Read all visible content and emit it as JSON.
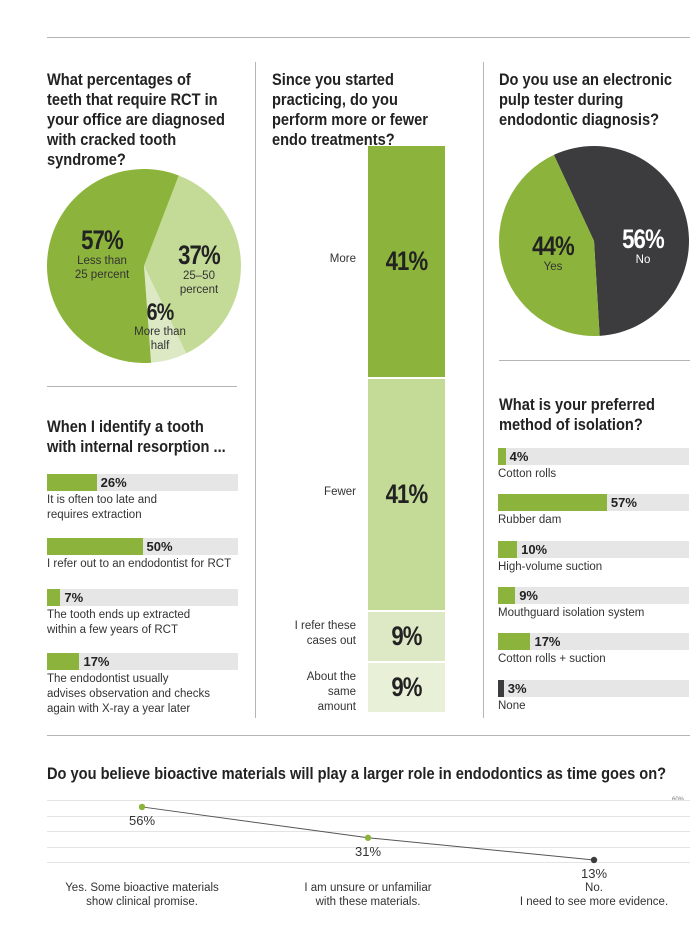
{
  "colors": {
    "green": "#8cb43c",
    "green_mid": "#a7c86a",
    "green_light": "#c4db97",
    "green_pale": "#dde9c4",
    "green_paler": "#e9f0d8",
    "dark": "#3c3c3e",
    "track": "#e6e6e6"
  },
  "q1": {
    "title": "What percentages of teeth that require RCT in your office are diagnosed with cracked tooth syndrome?",
    "slices": [
      {
        "pct": "57%",
        "label": "Less than 25 percent",
        "value": 57
      },
      {
        "pct": "37%",
        "label": "25–50 percent",
        "value": 37
      },
      {
        "pct": "6%",
        "label": "More than half",
        "value": 6
      }
    ]
  },
  "q2": {
    "title": "Since you started practicing, do you perform more or fewer endo treatments?",
    "segments": [
      {
        "label": "More",
        "pct": "41%",
        "value": 41
      },
      {
        "label": "Fewer",
        "pct": "41%",
        "value": 41
      },
      {
        "label": "I refer these cases out",
        "pct": "9%",
        "value": 9
      },
      {
        "label": "About the same amount",
        "pct": "9%",
        "value": 9
      }
    ]
  },
  "q3": {
    "title": "Do you use an electronic pulp tester during endodontic diagnosis?",
    "slices": [
      {
        "pct": "44%",
        "label": "Yes",
        "value": 44
      },
      {
        "pct": "56%",
        "label": "No",
        "value": 56
      }
    ]
  },
  "q4": {
    "title": "When I identify a tooth with internal resorption ...",
    "items": [
      {
        "pct": "26%",
        "value": 26,
        "desc": [
          "It is often too late and",
          "requires extraction"
        ]
      },
      {
        "pct": "50%",
        "value": 50,
        "desc": [
          "I refer out to an endodontist for RCT"
        ]
      },
      {
        "pct": "7%",
        "value": 7,
        "desc": [
          "The tooth ends up extracted",
          "within a few years of RCT"
        ]
      },
      {
        "pct": "17%",
        "value": 17,
        "desc": [
          "The endodontist usually",
          "advises observation and checks",
          "again with X-ray a year later"
        ]
      }
    ]
  },
  "q5": {
    "title": "What is your preferred method of isolation?",
    "items": [
      {
        "pct": "4%",
        "value": 4,
        "desc": "Cotton rolls"
      },
      {
        "pct": "57%",
        "value": 57,
        "desc": "Rubber dam"
      },
      {
        "pct": "10%",
        "value": 10,
        "desc": "High-volume suction"
      },
      {
        "pct": "9%",
        "value": 9,
        "desc": "Mouthguard isolation system"
      },
      {
        "pct": "17%",
        "value": 17,
        "desc": "Cotton rolls + suction"
      },
      {
        "pct": "3%",
        "value": 3,
        "desc": "None",
        "dark": true
      }
    ]
  },
  "q6": {
    "title": "Do you believe bioactive materials will play a larger role in endodontics as time goes on?",
    "axis_max_label": "60%"
  },
  "chart_data": [
    {
      "type": "pie",
      "title": "What percentages of teeth that require RCT in your office are diagnosed with cracked tooth syndrome?",
      "categories": [
        "Less than 25 percent",
        "25–50 percent",
        "More than half"
      ],
      "values": [
        57,
        37,
        6
      ]
    },
    {
      "type": "bar",
      "title": "Since you started practicing, do you perform more or fewer endo treatments?",
      "categories": [
        "More",
        "Fewer",
        "I refer these cases out",
        "About the same amount"
      ],
      "values": [
        41,
        41,
        9,
        9
      ]
    },
    {
      "type": "pie",
      "title": "Do you use an electronic pulp tester during endodontic diagnosis?",
      "categories": [
        "Yes",
        "No"
      ],
      "values": [
        44,
        56
      ]
    },
    {
      "type": "bar",
      "title": "When I identify a tooth with internal resorption ...",
      "categories": [
        "It is often too late and requires extraction",
        "I refer out to an endodontist for RCT",
        "The tooth ends up extracted within a few years of RCT",
        "The endodontist usually advises observation and checks again with X-ray a year later"
      ],
      "values": [
        26,
        50,
        7,
        17
      ]
    },
    {
      "type": "bar",
      "title": "What is your preferred method of isolation?",
      "categories": [
        "Cotton rolls",
        "Rubber dam",
        "High-volume suction",
        "Mouthguard isolation system",
        "Cotton rolls + suction",
        "None"
      ],
      "values": [
        4,
        57,
        10,
        9,
        17,
        3
      ]
    },
    {
      "type": "line",
      "title": "Do you believe bioactive materials will play a larger role in endodontics as time goes on?",
      "categories": [
        "Yes. Some bioactive materials show clinical promise.",
        "I am unsure or unfamiliar with these materials.",
        "No. I need to see more evidence."
      ],
      "category_lines": [
        [
          "Yes. Some bioactive materials",
          "show clinical promise."
        ],
        [
          "I am unsure or unfamiliar",
          "with these materials."
        ],
        [
          "No.",
          "I need to see more evidence."
        ]
      ],
      "values": [
        56,
        31,
        13
      ],
      "labels": [
        "56%",
        "31%",
        "13%"
      ],
      "ylim": [
        0,
        60
      ]
    }
  ]
}
